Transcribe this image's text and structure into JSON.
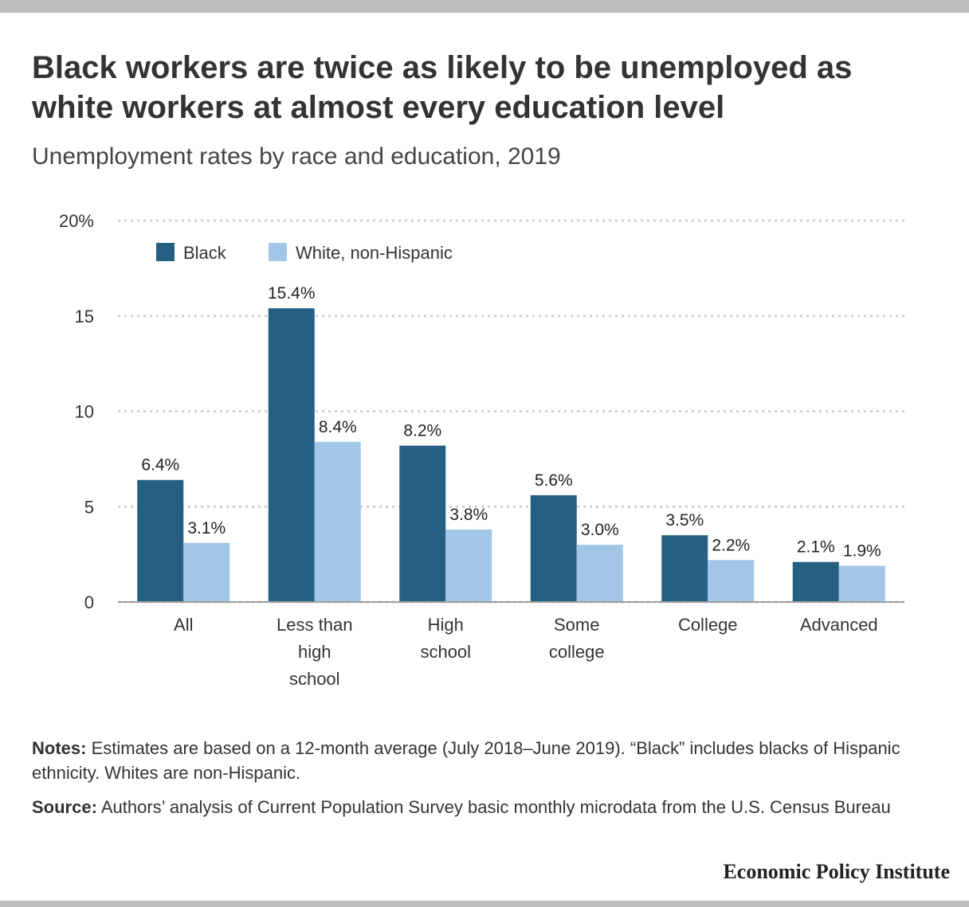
{
  "header": {
    "title": "Black workers are twice as likely to be unemployed as white workers at almost every education level",
    "subtitle": "Unemployment rates by race and education, 2019"
  },
  "chart_data": {
    "type": "bar",
    "categories": [
      "All",
      "Less than high school",
      "High school",
      "Some college",
      "College",
      "Advanced"
    ],
    "category_lines": [
      [
        "All"
      ],
      [
        "Less than",
        "high",
        "school"
      ],
      [
        "High",
        "school"
      ],
      [
        "Some",
        "college"
      ],
      [
        "College"
      ],
      [
        "Advanced"
      ]
    ],
    "series": [
      {
        "name": "Black",
        "values": [
          6.4,
          15.4,
          8.2,
          5.6,
          3.5,
          2.1
        ],
        "labels": [
          "6.4%",
          "15.4%",
          "8.2%",
          "5.6%",
          "3.5%",
          "2.1%"
        ],
        "color": "#256083"
      },
      {
        "name": "White, non-Hispanic",
        "values": [
          3.1,
          8.4,
          3.8,
          3.0,
          2.2,
          1.9
        ],
        "labels": [
          "3.1%",
          "8.4%",
          "3.8%",
          "3.0%",
          "2.2%",
          "1.9%"
        ],
        "color": "#a2c6e8"
      }
    ],
    "ylim": [
      0,
      20
    ],
    "yticks": [
      0,
      5,
      10,
      15,
      20
    ],
    "ytick_labels": [
      "0",
      "5",
      "10",
      "15",
      "20%"
    ],
    "grid": true,
    "legend_position": "top-left"
  },
  "notes": {
    "label": "Notes:",
    "text": " Estimates are based on a 12-month average (July 2018–June 2019). “Black” includes blacks of Hispanic ethnicity. Whites are non-Hispanic."
  },
  "source": {
    "label": "Source:",
    "text": " Authors’ analysis of Current Population Survey basic monthly microdata from the U.S. Census Bureau"
  },
  "footer": {
    "brand": "Economic Policy Institute"
  }
}
